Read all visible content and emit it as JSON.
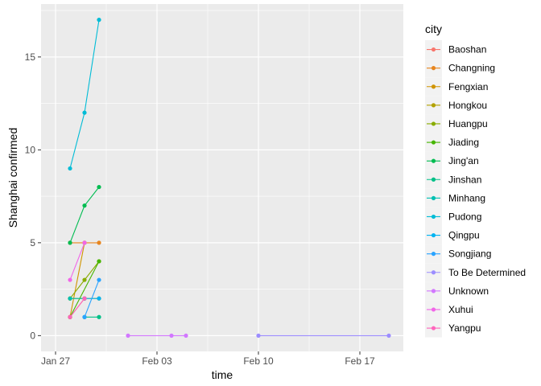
{
  "chart_data": {
    "type": "line",
    "xlabel": "time",
    "ylabel": "Shanghai  confirmed",
    "x_type": "date",
    "xlim": [
      "2020-01-26",
      "2020-02-20"
    ],
    "ylim": [
      -0.85,
      17.85
    ],
    "x_ticks": [
      {
        "date": "2020-01-27",
        "label": "Jan 27"
      },
      {
        "date": "2020-02-03",
        "label": "Feb 03"
      },
      {
        "date": "2020-02-10",
        "label": "Feb 10"
      },
      {
        "date": "2020-02-17",
        "label": "Feb 17"
      }
    ],
    "y_ticks": [
      0,
      5,
      10,
      15
    ],
    "grid": true,
    "legend_position": "right",
    "legend_title": "city",
    "series": [
      {
        "name": "Baoshan",
        "color": "#F8766D",
        "points": [
          {
            "x": "2020-01-28",
            "y": 1
          },
          {
            "x": "2020-01-29",
            "y": 2
          }
        ]
      },
      {
        "name": "Changning",
        "color": "#E7851E",
        "points": [
          {
            "x": "2020-01-28",
            "y": 5
          },
          {
            "x": "2020-01-29",
            "y": 5
          },
          {
            "x": "2020-01-30",
            "y": 5
          }
        ]
      },
      {
        "name": "Fengxian",
        "color": "#D09400",
        "points": [
          {
            "x": "2020-01-28",
            "y": 1
          },
          {
            "x": "2020-01-29",
            "y": 5
          }
        ]
      },
      {
        "name": "Hongkou",
        "color": "#B2A100",
        "points": [
          {
            "x": "2020-01-28",
            "y": 2
          },
          {
            "x": "2020-01-29",
            "y": 2
          },
          {
            "x": "2020-01-30",
            "y": 2
          }
        ]
      },
      {
        "name": "Huangpu",
        "color": "#89AC00",
        "points": [
          {
            "x": "2020-01-28",
            "y": 2
          },
          {
            "x": "2020-01-29",
            "y": 3
          },
          {
            "x": "2020-01-30",
            "y": 4
          }
        ]
      },
      {
        "name": "Jiading",
        "color": "#45B500",
        "points": [
          {
            "x": "2020-01-28",
            "y": 1
          },
          {
            "x": "2020-01-30",
            "y": 4
          }
        ]
      },
      {
        "name": "Jing'an",
        "color": "#00BC51",
        "points": [
          {
            "x": "2020-01-28",
            "y": 5
          },
          {
            "x": "2020-01-29",
            "y": 7
          },
          {
            "x": "2020-01-30",
            "y": 8
          }
        ]
      },
      {
        "name": "Jinshan",
        "color": "#00C087",
        "points": [
          {
            "x": "2020-01-29",
            "y": 1
          },
          {
            "x": "2020-01-30",
            "y": 1
          }
        ]
      },
      {
        "name": "Minhang",
        "color": "#00C0B2",
        "points": [
          {
            "x": "2020-01-28",
            "y": 2
          },
          {
            "x": "2020-01-29",
            "y": 2
          }
        ]
      },
      {
        "name": "Pudong",
        "color": "#00BCD6",
        "points": [
          {
            "x": "2020-01-28",
            "y": 9
          },
          {
            "x": "2020-01-29",
            "y": 12
          },
          {
            "x": "2020-01-30",
            "y": 17
          }
        ]
      },
      {
        "name": "Qingpu",
        "color": "#00B3F2",
        "points": [
          {
            "x": "2020-01-29",
            "y": 2
          },
          {
            "x": "2020-01-30",
            "y": 2
          }
        ]
      },
      {
        "name": "Songjiang",
        "color": "#29A3FF",
        "points": [
          {
            "x": "2020-01-29",
            "y": 1
          },
          {
            "x": "2020-01-30",
            "y": 3
          }
        ]
      },
      {
        "name": "To Be Determined",
        "color": "#9C8DFF",
        "points": [
          {
            "x": "2020-02-10",
            "y": 0
          },
          {
            "x": "2020-02-19",
            "y": 0
          }
        ]
      },
      {
        "name": "Unknown",
        "color": "#D277FF",
        "points": [
          {
            "x": "2020-02-01",
            "y": 0
          },
          {
            "x": "2020-02-04",
            "y": 0
          },
          {
            "x": "2020-02-05",
            "y": 0
          }
        ]
      },
      {
        "name": "Xuhui",
        "color": "#F166E8",
        "points": [
          {
            "x": "2020-01-28",
            "y": 3
          },
          {
            "x": "2020-01-29",
            "y": 5
          }
        ]
      },
      {
        "name": "Yangpu",
        "color": "#FF65BC",
        "points": [
          {
            "x": "2020-01-28",
            "y": 1
          },
          {
            "x": "2020-01-29",
            "y": 2
          }
        ]
      }
    ]
  }
}
